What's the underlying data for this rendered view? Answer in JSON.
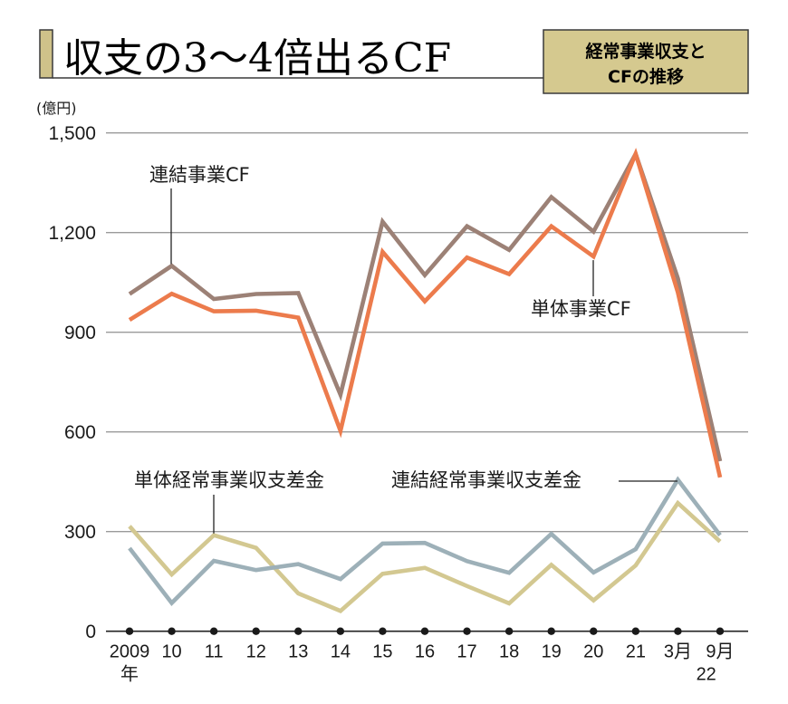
{
  "header": {
    "title": "収支の3〜4倍出るCF",
    "badge_line1": "経常事業収支と",
    "badge_line2": "CFの推移",
    "accent_color": "#cfc28a",
    "badge_color": "#d5c98f"
  },
  "chart_data": {
    "type": "line",
    "title": "収支の3〜4倍出るCF",
    "subtitle": "経常事業収支とCFの推移",
    "ylabel": "(億円)",
    "xlabel": "",
    "ylim": [
      0,
      1500
    ],
    "yticks": [
      0,
      300,
      600,
      900,
      1200,
      1500
    ],
    "ytick_labels": [
      "0",
      "300",
      "600",
      "900",
      "1,200",
      "1,500"
    ],
    "grid": true,
    "categories": [
      "2009",
      "10",
      "11",
      "12",
      "13",
      "14",
      "15",
      "16",
      "17",
      "18",
      "19",
      "20",
      "21",
      "3月",
      "9月"
    ],
    "x_sublabels": {
      "first": "年",
      "last_group": "22"
    },
    "series": [
      {
        "name": "連結事業CF",
        "color": "#9c8176",
        "values": [
          1015,
          1100,
          1000,
          1015,
          1018,
          712,
          1233,
          1072,
          1219,
          1148,
          1307,
          1203,
          1437,
          1062,
          512
        ]
      },
      {
        "name": "単体事業CF",
        "color": "#ec7b4c",
        "values": [
          937,
          1016,
          963,
          965,
          944,
          603,
          1142,
          993,
          1125,
          1075,
          1219,
          1128,
          1437,
          1020,
          463
        ]
      },
      {
        "name": "連結経常事業収支差金",
        "color": "#9db0b8",
        "values": [
          250,
          85,
          212,
          184,
          202,
          157,
          264,
          266,
          211,
          176,
          293,
          177,
          247,
          456,
          289
        ]
      },
      {
        "name": "単体経常事業収支差金",
        "color": "#d3c891",
        "values": [
          316,
          171,
          289,
          251,
          114,
          61,
          173,
          191,
          136,
          84,
          200,
          93,
          198,
          386,
          270
        ]
      }
    ],
    "annotations": [
      {
        "text": "連結事業CF",
        "series": 0,
        "point_index": 1
      },
      {
        "text": "単体事業CF",
        "series": 1,
        "point_index": 11
      },
      {
        "text": "単体経常事業収支差金",
        "series": 3,
        "point_index": 2
      },
      {
        "text": "連結経常事業収支差金",
        "series": 2,
        "point_index": 13
      }
    ],
    "legend": "inline-annotations"
  }
}
